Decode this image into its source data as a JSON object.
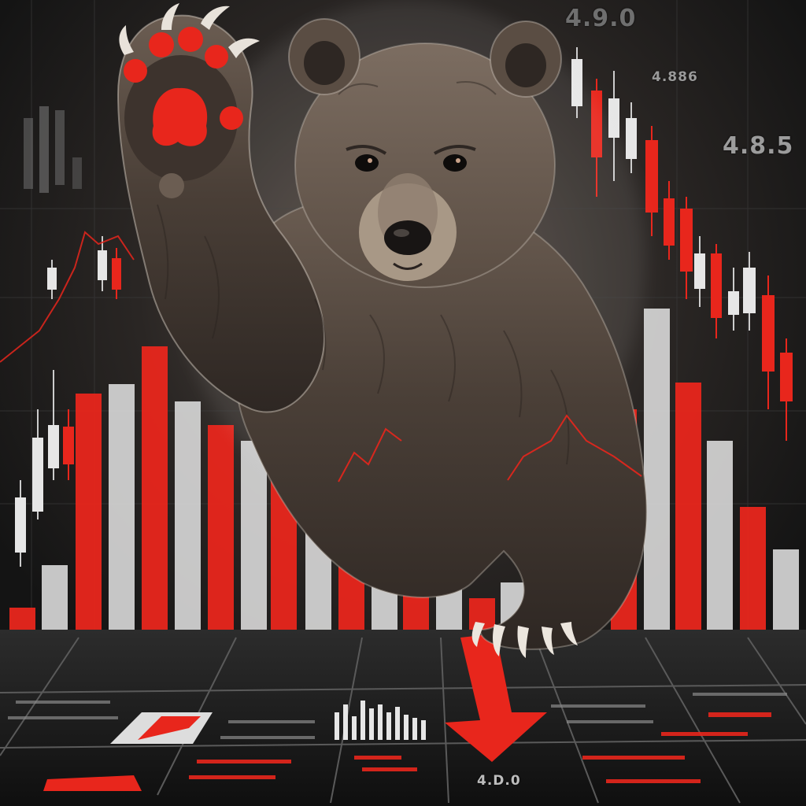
{
  "scene": {
    "subject": "bear",
    "theme": "bear-market stock decline",
    "colors": {
      "background": "#1a1a1a",
      "accent_red": "#e8261c",
      "bar_white": "#d9d9d9",
      "fur": "#4a3f37",
      "paw_pads": "#e8261c"
    }
  },
  "labels": {
    "top_value": "4.9.0",
    "mid_value": "4.886",
    "right_value": "4.8.5",
    "bottom_value": "4.D.0"
  },
  "bars": [
    {
      "color": "red"
    },
    {
      "color": "white"
    },
    {
      "color": "red"
    },
    {
      "color": "white"
    },
    {
      "color": "red"
    },
    {
      "color": "white"
    },
    {
      "color": "red"
    },
    {
      "color": "white"
    },
    {
      "color": "red"
    },
    {
      "color": "white"
    },
    {
      "color": "red"
    },
    {
      "color": "white"
    },
    {
      "color": "red"
    },
    {
      "color": "white"
    },
    {
      "color": "red"
    },
    {
      "color": "white"
    },
    {
      "color": "red"
    },
    {
      "color": "white"
    },
    {
      "color": "red"
    },
    {
      "color": "white"
    },
    {
      "color": "red"
    },
    {
      "color": "white"
    },
    {
      "color": "red"
    },
    {
      "color": "white"
    }
  ]
}
